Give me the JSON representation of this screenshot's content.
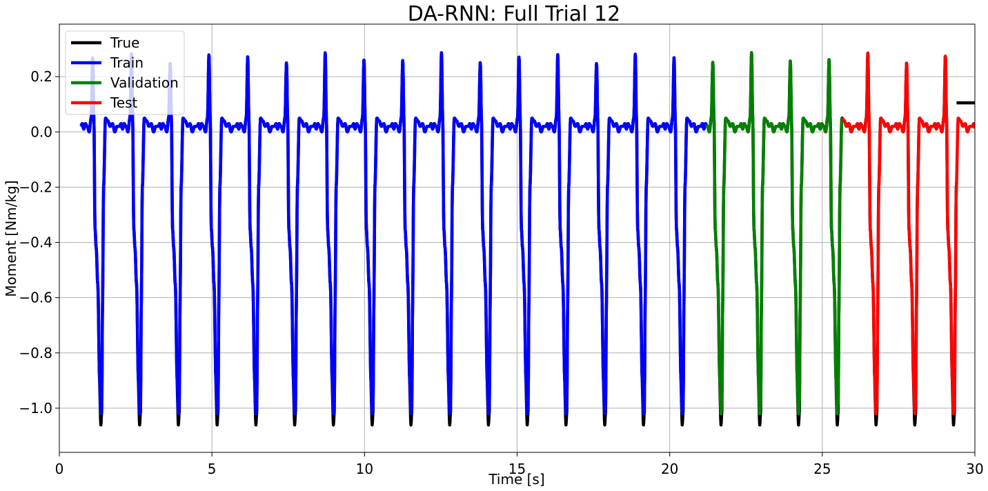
{
  "chart_data": {
    "type": "line",
    "title": "DA-RNN: Full Trial 12",
    "xlabel": "Time [s]",
    "ylabel": "Moment [Nm/kg]",
    "xlim": [
      0,
      30
    ],
    "ylim": [
      -1.16,
      0.39
    ],
    "xticks": [
      0,
      5,
      10,
      15,
      20,
      25,
      30
    ],
    "yticks": [
      0.2,
      0.0,
      -0.2,
      -0.4,
      -0.6,
      -0.8,
      -1.0
    ],
    "ytick_labels": [
      "0.2",
      "0.0",
      "−0.2",
      "−0.4",
      "−0.6",
      "−0.8",
      "−1.0"
    ],
    "grid": true,
    "legend_position": "top-left",
    "time_start": 0.7,
    "gait_period": 1.27,
    "gait_cycles": 23,
    "true_hold_after_end": {
      "x": [
        29.4,
        30.0
      ],
      "y": 0.105
    },
    "series": [
      {
        "name": "True",
        "color": "#000000",
        "x_range": [
          0.7,
          29.4
        ]
      },
      {
        "name": "Train",
        "color": "#0000ff",
        "x_range": [
          0.7,
          21.2
        ]
      },
      {
        "name": "Validation",
        "color": "#008000",
        "x_range": [
          21.2,
          25.65
        ]
      },
      {
        "name": "Test",
        "color": "#ff0000",
        "x_range": [
          25.65,
          30.0
        ]
      }
    ]
  }
}
